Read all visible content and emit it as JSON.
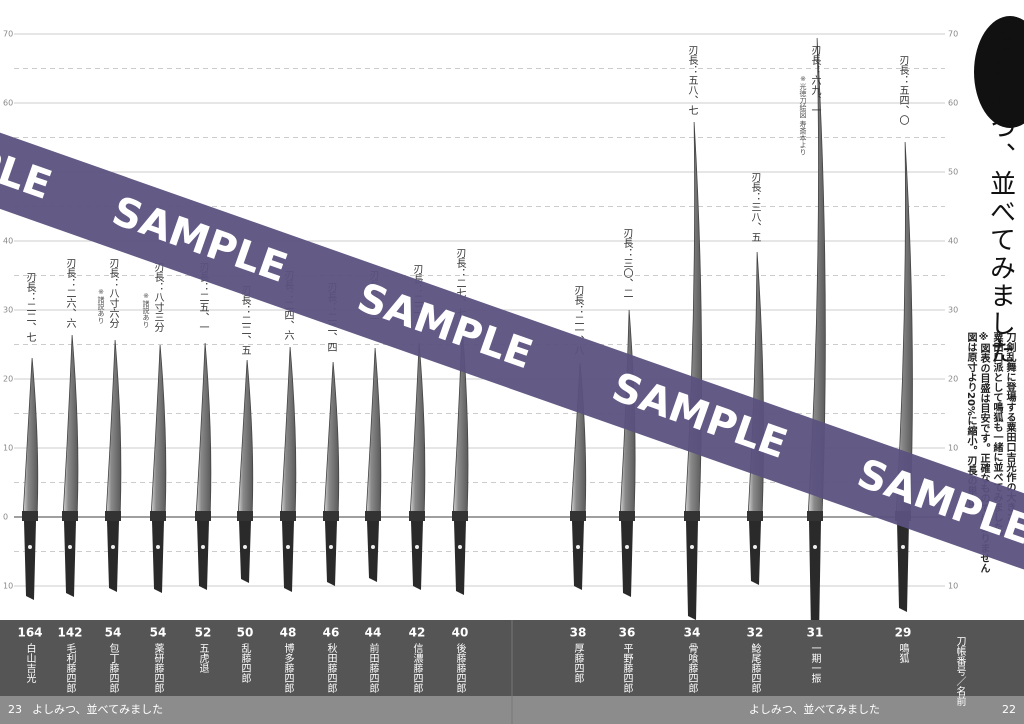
{
  "title": "よしみつ、並べてみました",
  "notes": [
    "刀剣乱舞に登場する粟田口吉光作の大きさを",
    "粟田口派として鳴狐も一緒に並べてみました。",
    "※図表の目盛は目安です。正確なものではありません",
    "図は原寸より20%に縮小。刃長の単位は"
  ],
  "ticks": [
    "70",
    "60",
    "50",
    "40",
    "30",
    "20",
    "10",
    "0",
    "10"
  ],
  "header": "刀帳番号／名前",
  "watermark": "SAMPLE",
  "footer": {
    "left_page": "23",
    "right_page": "22",
    "running_title": "よしみつ、並べてみました"
  },
  "swords": [
    {
      "number": "164",
      "name": "白山吉光",
      "length": "刃長：二二、七"
    },
    {
      "number": "142",
      "name": "毛利藤四郎",
      "length": "刃長：二六、六"
    },
    {
      "number": "54",
      "name": "包丁藤四郎",
      "length": "刃長：八寸六分",
      "note": "※諸説あり"
    },
    {
      "number": "54",
      "name": "薬研藤四郎",
      "length": "刃長：八寸三分",
      "note": "※諸説あり"
    },
    {
      "number": "52",
      "name": "五虎退",
      "length": "刃長：二五、一"
    },
    {
      "number": "50",
      "name": "乱藤四郎",
      "length": "刃長：二二、五"
    },
    {
      "number": "48",
      "name": "博多藤四郎",
      "length": "刃長：二四、六"
    },
    {
      "number": "46",
      "name": "秋田藤四郎",
      "length": "刃長：二二、四"
    },
    {
      "number": "44",
      "name": "前田藤四郎",
      "length": "刃長：二二"
    },
    {
      "number": "42",
      "name": "信濃藤四郎",
      "length": "刃長：二二"
    },
    {
      "number": "40",
      "name": "後藤藤四郎",
      "length": "刃長：二七、七"
    },
    {
      "number": "38",
      "name": "厚藤四郎",
      "length": "刃長：二一、八"
    },
    {
      "number": "36",
      "name": "平野藤四郎",
      "length": "刃長：三〇、二"
    },
    {
      "number": "34",
      "name": "骨喰藤四郎",
      "length": "刃長：五八、七"
    },
    {
      "number": "32",
      "name": "鯰尾藤四郎",
      "length": "刃長：三八、五"
    },
    {
      "number": "31",
      "name": "一期一振",
      "length": "刃長：六九、一",
      "note": "※光徳刀絵図 寿斎本より"
    },
    {
      "number": "29",
      "name": "鳴狐",
      "length": "刃長：五四、〇"
    }
  ]
}
